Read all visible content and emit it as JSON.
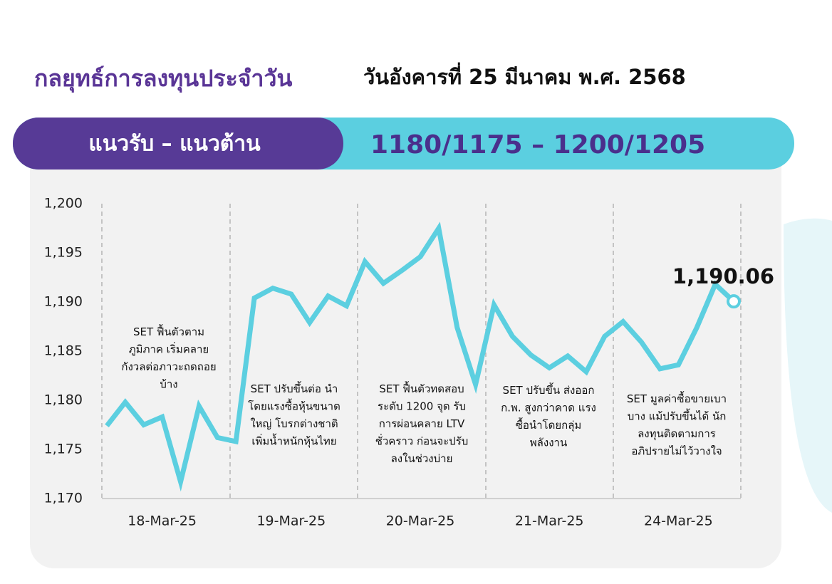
{
  "header": {
    "title": "กลยุทธ์การลงทุนประจำวัน",
    "date": "วันอังคารที่ 25 มีนาคม พ.ศ. 2568",
    "banner_label": "แนวรับ – แนวต้าน",
    "banner_value": "1180/1175 – 1200/1205"
  },
  "chart_data": {
    "type": "line",
    "categories": [
      null,
      null,
      null,
      "18-Mar-25",
      null,
      null,
      null,
      null,
      null,
      null,
      "19-Mar-25",
      null,
      null,
      null,
      null,
      null,
      null,
      "20-Mar-25",
      null,
      null,
      null,
      null,
      null,
      null,
      "21-Mar-25",
      null,
      null,
      null,
      null,
      null,
      null,
      "24-Mar-25",
      null,
      null,
      null
    ],
    "values": [
      1177.4,
      1179.8,
      1177.5,
      1178.3,
      1171.7,
      1179.4,
      1176.2,
      1175.8,
      1190.4,
      1191.4,
      1190.8,
      1187.9,
      1190.6,
      1189.6,
      1194.1,
      1191.9,
      1193.2,
      1194.6,
      1197.5,
      1187.4,
      1181.6,
      1189.7,
      1186.5,
      1184.6,
      1183.3,
      1184.5,
      1182.9,
      1186.5,
      1188.0,
      1185.9,
      1183.2,
      1183.6,
      1187.4,
      1191.8,
      1190.06
    ],
    "value_labels": [
      null,
      null,
      null,
      null,
      null,
      null,
      null,
      null,
      null,
      null,
      null,
      null,
      null,
      null,
      null,
      null,
      null,
      null,
      null,
      null,
      null,
      null,
      null,
      null,
      null,
      null,
      null,
      null,
      null,
      null,
      null,
      null,
      null,
      null,
      "1,190.06"
    ],
    "color": "#5ccfe0",
    "ylim": [
      1170,
      1200
    ],
    "yticks": [
      {
        "value": 1170,
        "label": "1,170"
      },
      {
        "value": 1175,
        "label": "1,175"
      },
      {
        "value": 1180,
        "label": "1,180"
      },
      {
        "value": 1185,
        "label": "1,185"
      },
      {
        "value": 1190,
        "label": "1,190"
      },
      {
        "value": 1195,
        "label": "1,195"
      },
      {
        "value": 1200,
        "label": "1,200"
      }
    ],
    "annotations": [
      {
        "lines": [
          "SET ฟื้นตัวตาม",
          "ภูมิภาค เริ่มคลาย",
          "กังวลต่อภาวะถดถอย",
          "บ้าง"
        ]
      },
      {
        "lines": [
          "SET ปรับขึ้นต่อ นำ",
          "โดยแรงซื้อหุ้นขนาด",
          "ใหญ่ โบรกต่างชาติ",
          "เพิ่มน้ำหนักหุ้นไทย"
        ]
      },
      {
        "lines": [
          "SET ฟื้นตัวทดสอบ",
          "ระดับ 1200 จุด รับ",
          "การผ่อนคลาย LTV",
          "ชั่วคราว ก่อนจะปรับ",
          "ลงในช่วงบ่าย"
        ]
      },
      {
        "lines": [
          "SET ปรับขึ้น ส่งออก",
          "ก.พ. สูงกว่าคาด แรง",
          "ซื้อนำโดยกลุ่ม",
          "พลังงาน"
        ]
      },
      {
        "lines": [
          "SET มูลค่าซื้อขายเบา",
          "บาง แม้ปรับขึ้นได้ นัก",
          "ลงทุนติดตามการ",
          "อภิปรายไม่ไว้วางใจ"
        ]
      }
    ]
  }
}
